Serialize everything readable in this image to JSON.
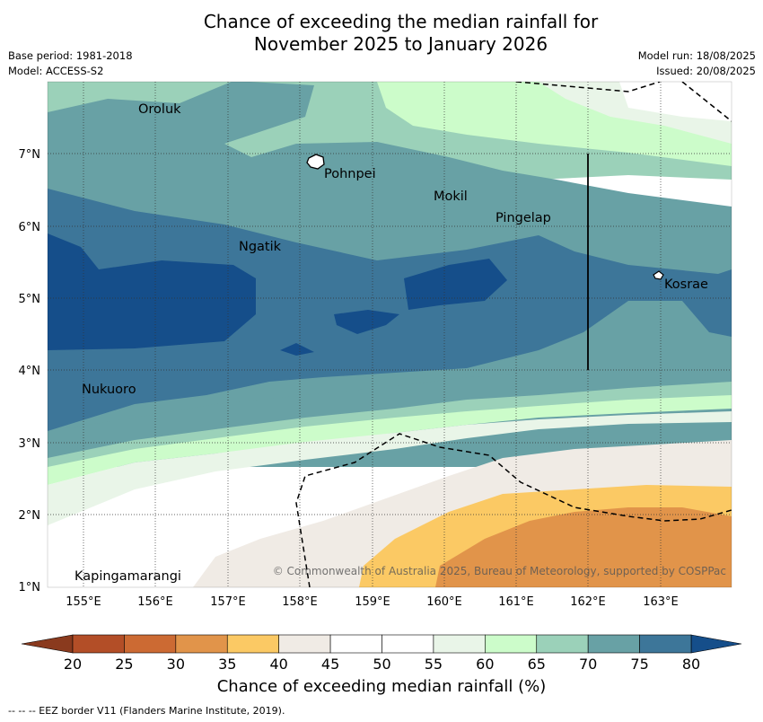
{
  "title_line1": "Chance of exceeding the median rainfall for",
  "title_line2": "November 2025 to January 2026",
  "meta_left": [
    "Base period: 1981-2018",
    "Model: ACCESS-S2"
  ],
  "meta_right": [
    "Model run: 18/08/2025",
    "Issued: 20/08/2025"
  ],
  "x_ticks": [
    "155°E",
    "156°E",
    "157°E",
    "158°E",
    "159°E",
    "160°E",
    "161°E",
    "162°E",
    "163°E"
  ],
  "y_ticks": [
    "7°N",
    "6°N",
    "5°N",
    "4°N",
    "3°N",
    "2°N",
    "1°N"
  ],
  "places": [
    "Oroluk",
    "Pohnpei",
    "Mokil",
    "Pingelap",
    "Ngatik",
    "Kosrae",
    "Nukuoro",
    "Kapingamarangi"
  ],
  "copyright": "© Commonwealth of Australia 2025, Bureau of Meteorology, supported by COSPPac",
  "colorbar": {
    "labels": [
      "20",
      "25",
      "30",
      "35",
      "40",
      "45",
      "50",
      "55",
      "60",
      "65",
      "70",
      "75",
      "80"
    ],
    "colors": [
      "#8a3a1e",
      "#b34e27",
      "#cc6a33",
      "#e1944a",
      "#fbc964",
      "#f0ebe5",
      "#ffffff",
      "#ffffff",
      "#e9f5e8",
      "#ccfcca",
      "#9bd1b9",
      "#68a1a5",
      "#3d7699",
      "#154e8a"
    ],
    "title": "Chance of exceeding median rainfall (%)"
  },
  "footer": "--  --  -- EEZ border V11 (Flanders Marine Institute, 2019)."
}
